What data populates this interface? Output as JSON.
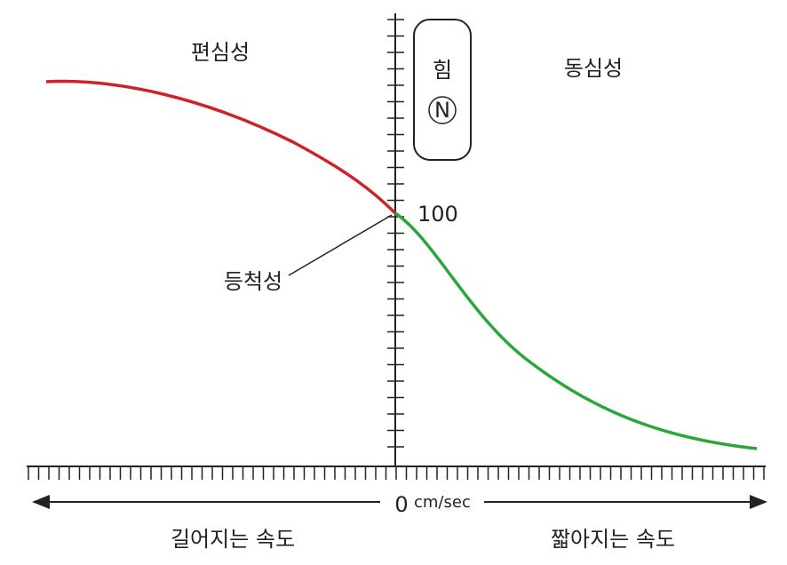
{
  "labels": {
    "eccentric": "편심성",
    "concentric": "동심성",
    "isometric": "등척성",
    "force": "힘",
    "force_unit": "N",
    "tick_100": "100",
    "origin": "0",
    "velocity_unit": "cm/sec",
    "lengthening": "길어지는 속도",
    "shortening": "짧아지는 속도"
  }
}
